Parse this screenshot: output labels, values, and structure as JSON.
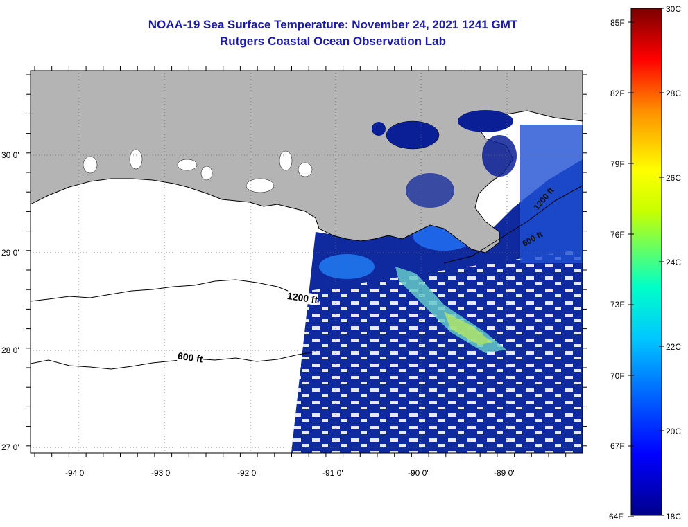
{
  "title": {
    "line1": "NOAA-19 Sea Surface Temperature:  November 24, 2021 1241 GMT",
    "line2": "Rutgers Coastal Ocean Observation Lab"
  },
  "map": {
    "lat_labels": [
      "30 0'",
      "29 0'",
      "28 0'",
      "27 0'"
    ],
    "lon_labels": [
      "-94 0'",
      "-93 0'",
      "-92 0'",
      "-91 0'",
      "-90 0'",
      "-89 0'"
    ],
    "contours": {
      "c1200": "1200 ft",
      "c600": "600 ft",
      "c600_ne": "600 ft",
      "c1200_ne": "1200 ft"
    },
    "colors": {
      "land": "#b4b4b4",
      "ocean_deep": "#0a1e96",
      "ocean_mid": "#1e46c8",
      "swath_cool": "#1e64e6",
      "swath_mid": "#3cc8f0",
      "swath_warm": "#9ee678",
      "cloud": "#ffffff"
    }
  },
  "colorbar": {
    "fahrenheit": [
      "85F",
      "82F",
      "79F",
      "76F",
      "73F",
      "70F",
      "67F",
      "64F"
    ],
    "celsius": [
      "30C",
      "28C",
      "26C",
      "24C",
      "22C",
      "20C",
      "18C"
    ],
    "range_c": [
      18,
      30
    ],
    "range_f": [
      64,
      86
    ]
  }
}
